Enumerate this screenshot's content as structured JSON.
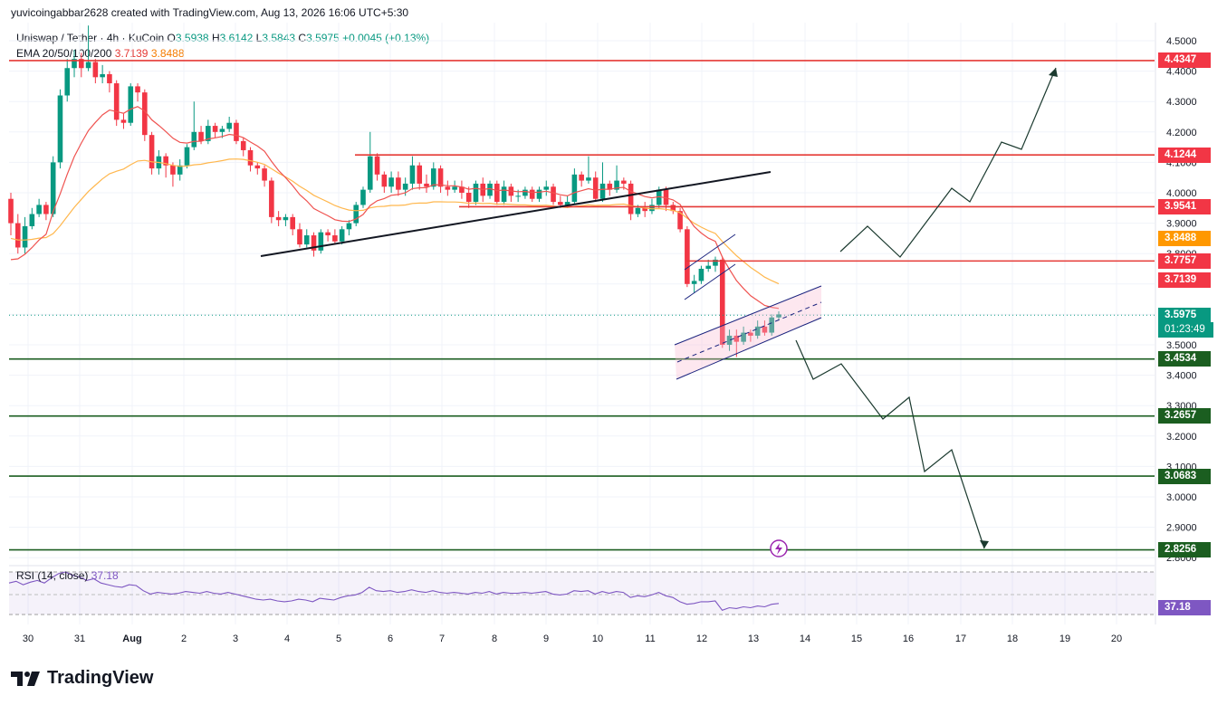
{
  "header": {
    "attribution": "yuvicoingabbar2628 created with TradingView.com, Aug 13, 2026 16:06 UTC+5:30"
  },
  "legend": {
    "symbol": "Uniswap / Tether · 4h · KuCoin",
    "o_label": "O",
    "o_value": "3.5938",
    "h_label": "H",
    "h_value": "3.6142",
    "l_label": "L",
    "l_value": "3.5843",
    "c_label": "C",
    "c_value": "3.5975",
    "change": "+0.0045 (+0.13%)",
    "ema_label": "EMA 20/50/100/200",
    "ema20_value": "3.7139",
    "ema50_value": "3.8488"
  },
  "rsi": {
    "label": "RSI (14, close)",
    "value": "37.18"
  },
  "branding": {
    "name": "TradingView"
  },
  "colors": {
    "up": "#089981",
    "down": "#f23645",
    "resistance": "#e53935",
    "support": "#1b5e20",
    "ema20": "#ef5350",
    "ema50": "#ffb74d",
    "rsi": "#7e57c2",
    "channel": "#1a237e"
  },
  "chart_data": {
    "type": "candlestick",
    "title": "Uniswap / Tether · 4h · KuCoin",
    "y_axis_ticks": [
      "4.5000",
      "4.4000",
      "4.3000",
      "4.2000",
      "4.1000",
      "4.0000",
      "3.9000",
      "3.8000",
      "3.5000",
      "3.4000",
      "3.3000",
      "3.2000",
      "3.1000",
      "3.0000",
      "2.9000",
      "2.8000"
    ],
    "x_axis_ticks": [
      "30",
      "31",
      "Aug",
      "2",
      "3",
      "4",
      "5",
      "6",
      "7",
      "8",
      "9",
      "10",
      "11",
      "12",
      "13",
      "14",
      "15",
      "16",
      "17",
      "18",
      "19",
      "20"
    ],
    "ylim": [
      2.8,
      4.5
    ],
    "price_badges": [
      {
        "value": "4.4347",
        "color": "#f23645"
      },
      {
        "value": "4.1244",
        "color": "#f23645"
      },
      {
        "value": "3.9541",
        "color": "#f23645"
      },
      {
        "value": "3.8488",
        "color": "#ff9800"
      },
      {
        "value": "3.7757",
        "color": "#f23645"
      },
      {
        "value": "3.7139",
        "color": "#f23645"
      },
      {
        "value": "3.5975",
        "color": "#089981"
      },
      {
        "value": "3.4534",
        "color": "#1b5e20"
      },
      {
        "value": "3.2657",
        "color": "#1b5e20"
      },
      {
        "value": "3.0683",
        "color": "#1b5e20"
      },
      {
        "value": "2.8256",
        "color": "#1b5e20"
      },
      {
        "value": "37.18",
        "color": "#7e57c2"
      }
    ],
    "countdown": "01:23:49",
    "horizontal_levels": [
      {
        "price": 4.4347,
        "kind": "resistance"
      },
      {
        "price": 4.1244,
        "kind": "resistance"
      },
      {
        "price": 3.9541,
        "kind": "resistance"
      },
      {
        "price": 3.7757,
        "kind": "resistance"
      },
      {
        "price": 3.4534,
        "kind": "support"
      },
      {
        "price": 3.2657,
        "kind": "support"
      },
      {
        "price": 3.0683,
        "kind": "support"
      },
      {
        "price": 2.8256,
        "kind": "support"
      }
    ],
    "candles": [
      [
        3.98,
        3.9,
        4.0,
        3.86
      ],
      [
        3.9,
        3.82,
        3.93,
        3.8
      ],
      [
        3.82,
        3.89,
        3.92,
        3.8
      ],
      [
        3.89,
        3.93,
        3.95,
        3.88
      ],
      [
        3.93,
        3.96,
        3.98,
        3.92
      ],
      [
        3.96,
        3.93,
        3.97,
        3.91
      ],
      [
        3.93,
        4.1,
        4.12,
        3.92
      ],
      [
        4.1,
        4.32,
        4.34,
        4.08
      ],
      [
        4.32,
        4.41,
        4.44,
        4.3
      ],
      [
        4.41,
        4.44,
        4.47,
        4.38
      ],
      [
        4.44,
        4.41,
        4.46,
        4.38
      ],
      [
        4.41,
        4.43,
        4.55,
        4.4
      ],
      [
        4.43,
        4.38,
        4.44,
        4.36
      ],
      [
        4.38,
        4.39,
        4.42,
        4.36
      ],
      [
        4.39,
        4.36,
        4.4,
        4.33
      ],
      [
        4.36,
        4.24,
        4.37,
        4.22
      ],
      [
        4.24,
        4.23,
        4.26,
        4.21
      ],
      [
        4.23,
        4.35,
        4.36,
        4.22
      ],
      [
        4.35,
        4.33,
        4.36,
        4.3
      ],
      [
        4.33,
        4.19,
        4.34,
        4.17
      ],
      [
        4.19,
        4.08,
        4.2,
        4.06
      ],
      [
        4.08,
        4.12,
        4.14,
        4.06
      ],
      [
        4.12,
        4.09,
        4.13,
        4.05
      ],
      [
        4.09,
        4.06,
        4.1,
        4.02
      ],
      [
        4.06,
        4.09,
        4.11,
        4.04
      ],
      [
        4.09,
        4.15,
        4.16,
        4.08
      ],
      [
        4.15,
        4.2,
        4.3,
        4.14
      ],
      [
        4.2,
        4.17,
        4.22,
        4.16
      ],
      [
        4.17,
        4.22,
        4.24,
        4.16
      ],
      [
        4.22,
        4.2,
        4.23,
        4.18
      ],
      [
        4.2,
        4.21,
        4.22,
        4.18
      ],
      [
        4.21,
        4.23,
        4.25,
        4.2
      ],
      [
        4.23,
        4.17,
        4.24,
        4.16
      ],
      [
        4.17,
        4.14,
        4.18,
        4.12
      ],
      [
        4.14,
        4.09,
        4.15,
        4.07
      ],
      [
        4.09,
        4.08,
        4.1,
        4.06
      ],
      [
        4.08,
        4.04,
        4.09,
        4.02
      ],
      [
        4.04,
        3.92,
        4.05,
        3.9
      ],
      [
        3.92,
        3.91,
        3.94,
        3.89
      ],
      [
        3.91,
        3.92,
        3.93,
        3.89
      ],
      [
        3.92,
        3.88,
        3.93,
        3.86
      ],
      [
        3.88,
        3.83,
        3.9,
        3.82
      ],
      [
        3.83,
        3.86,
        3.88,
        3.82
      ],
      [
        3.86,
        3.81,
        3.87,
        3.79
      ],
      [
        3.81,
        3.87,
        3.88,
        3.8
      ],
      [
        3.87,
        3.86,
        3.88,
        3.84
      ],
      [
        3.86,
        3.84,
        3.88,
        3.83
      ],
      [
        3.84,
        3.88,
        3.89,
        3.83
      ],
      [
        3.88,
        3.9,
        3.91,
        3.86
      ],
      [
        3.9,
        3.96,
        3.97,
        3.89
      ],
      [
        3.96,
        4.01,
        4.02,
        3.95
      ],
      [
        4.01,
        4.12,
        4.2,
        4.0
      ],
      [
        4.12,
        4.06,
        4.13,
        4.04
      ],
      [
        4.06,
        4.02,
        4.07,
        4.0
      ],
      [
        4.02,
        4.05,
        4.07,
        4.0
      ],
      [
        4.05,
        4.01,
        4.07,
        3.99
      ],
      [
        4.01,
        4.03,
        4.05,
        3.99
      ],
      [
        4.03,
        4.09,
        4.12,
        4.01
      ],
      [
        4.09,
        4.03,
        4.1,
        4.01
      ],
      [
        4.03,
        4.02,
        4.06,
        4.0
      ],
      [
        4.02,
        4.08,
        4.1,
        4.01
      ],
      [
        4.08,
        4.02,
        4.09,
        4.0
      ],
      [
        4.02,
        4.01,
        4.04,
        3.99
      ],
      [
        4.01,
        4.02,
        4.04,
        4.0
      ],
      [
        4.02,
        4.0,
        4.04,
        3.98
      ],
      [
        4.0,
        3.97,
        4.02,
        3.95
      ],
      [
        3.97,
        4.03,
        4.04,
        3.96
      ],
      [
        4.03,
        3.99,
        4.05,
        3.97
      ],
      [
        3.99,
        4.03,
        4.04,
        3.98
      ],
      [
        4.03,
        3.97,
        4.04,
        3.96
      ],
      [
        3.97,
        4.02,
        4.04,
        3.96
      ],
      [
        4.02,
        3.99,
        4.03,
        3.97
      ],
      [
        3.99,
        3.99,
        4.01,
        3.97
      ],
      [
        3.99,
        4.01,
        4.02,
        3.98
      ],
      [
        4.01,
        3.98,
        4.02,
        3.97
      ],
      [
        3.98,
        4.01,
        4.02,
        3.97
      ],
      [
        4.01,
        4.02,
        4.04,
        3.99
      ],
      [
        4.02,
        3.97,
        4.03,
        3.96
      ],
      [
        3.97,
        3.96,
        3.99,
        3.95
      ],
      [
        3.96,
        3.97,
        3.99,
        3.95
      ],
      [
        3.97,
        4.06,
        4.08,
        3.96
      ],
      [
        4.06,
        4.04,
        4.07,
        4.02
      ],
      [
        4.04,
        4.05,
        4.12,
        4.03
      ],
      [
        4.05,
        3.98,
        4.07,
        3.97
      ],
      [
        3.98,
        4.03,
        4.1,
        3.97
      ],
      [
        4.03,
        4.01,
        4.04,
        3.99
      ],
      [
        4.01,
        4.04,
        4.09,
        4.0
      ],
      [
        4.04,
        4.03,
        4.05,
        4.01
      ],
      [
        4.03,
        3.93,
        4.04,
        3.91
      ],
      [
        3.93,
        3.95,
        3.96,
        3.92
      ],
      [
        3.95,
        3.94,
        3.97,
        3.92
      ],
      [
        3.94,
        3.96,
        3.98,
        3.93
      ],
      [
        3.96,
        4.01,
        4.02,
        3.95
      ],
      [
        4.01,
        3.96,
        4.02,
        3.94
      ],
      [
        3.96,
        3.94,
        3.97,
        3.93
      ],
      [
        3.94,
        3.88,
        3.95,
        3.87
      ],
      [
        3.88,
        3.7,
        3.89,
        3.69
      ],
      [
        3.7,
        3.71,
        3.73,
        3.67
      ],
      [
        3.71,
        3.75,
        3.76,
        3.7
      ],
      [
        3.75,
        3.76,
        3.78,
        3.74
      ],
      [
        3.76,
        3.78,
        3.79,
        3.74
      ],
      [
        3.78,
        3.5,
        3.79,
        3.49
      ],
      [
        3.5,
        3.53,
        3.55,
        3.48
      ],
      [
        3.53,
        3.51,
        3.55,
        3.46
      ],
      [
        3.51,
        3.54,
        3.56,
        3.5
      ],
      [
        3.54,
        3.53,
        3.55,
        3.51
      ],
      [
        3.53,
        3.56,
        3.58,
        3.52
      ],
      [
        3.56,
        3.54,
        3.58,
        3.53
      ],
      [
        3.54,
        3.59,
        3.6,
        3.53
      ],
      [
        3.59,
        3.6,
        3.61,
        3.58
      ]
    ],
    "rsi_values": [
      57,
      59,
      55,
      58,
      60,
      57,
      63,
      68,
      70,
      66,
      64,
      60,
      62,
      57,
      55,
      53,
      52,
      55,
      54,
      48,
      44,
      46,
      45,
      44,
      45,
      47,
      46,
      45,
      47,
      45,
      44,
      46,
      44,
      42,
      40,
      38,
      37,
      38,
      36,
      35,
      36,
      38,
      37,
      35,
      39,
      38,
      37,
      40,
      42,
      43,
      46,
      52,
      48,
      47,
      48,
      46,
      47,
      49,
      47,
      46,
      48,
      46,
      45,
      46,
      45,
      44,
      46,
      45,
      47,
      44,
      46,
      45,
      45,
      46,
      45,
      46,
      47,
      44,
      43,
      44,
      48,
      47,
      48,
      44,
      47,
      45,
      47,
      46,
      40,
      42,
      41,
      43,
      46,
      42,
      40,
      35,
      32,
      33,
      35,
      35,
      36,
      25,
      28,
      27,
      29,
      28,
      30,
      29,
      32,
      33
    ]
  }
}
